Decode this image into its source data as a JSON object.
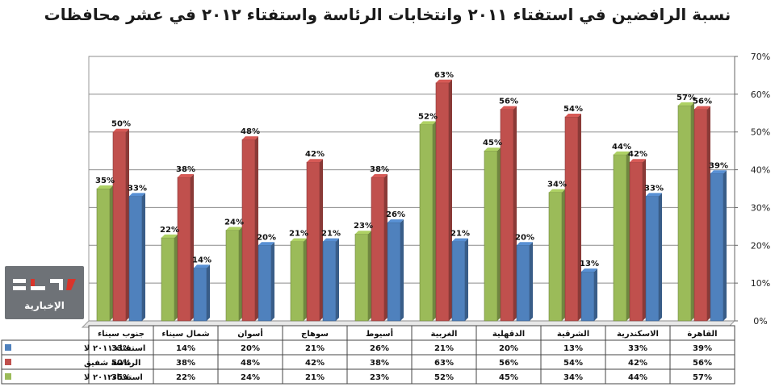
{
  "chart_data": {
    "type": "bar",
    "title": "نسبة الرافضين في استفتاء ٢٠١١ وانتخابات الرئاسة واستفتاء ٢٠١٢ في عشر محافظات",
    "categories": [
      "جنوب سيناء",
      "شمال سيناء",
      "أسوان",
      "سوهاج",
      "أسيوط",
      "الغربية",
      "الدقهلية",
      "الشرقية",
      "الاسكندرية",
      "القاهرة"
    ],
    "series": [
      {
        "name": "استفتاء٢٠١٢ لا",
        "color": "#9bbb59",
        "values": [
          35,
          22,
          24,
          21,
          23,
          52,
          45,
          34,
          44,
          57
        ]
      },
      {
        "name": "الرئاسة شفيق",
        "color": "#c0504d",
        "values": [
          50,
          38,
          48,
          42,
          38,
          63,
          56,
          54,
          42,
          56
        ]
      },
      {
        "name": "استفتاء ٢٠١١ لا",
        "color": "#4f81bd",
        "values": [
          33,
          14,
          20,
          21,
          26,
          21,
          20,
          13,
          33,
          39
        ]
      }
    ],
    "ylim": [
      0,
      70
    ],
    "yticks": [
      0,
      10,
      20,
      30,
      40,
      50,
      60,
      70
    ],
    "value_suffix": "%",
    "y_axis_side": "right",
    "grid": true,
    "legend": "data-table",
    "data_table": true
  },
  "logo": {
    "caption": "الإخبارية"
  }
}
